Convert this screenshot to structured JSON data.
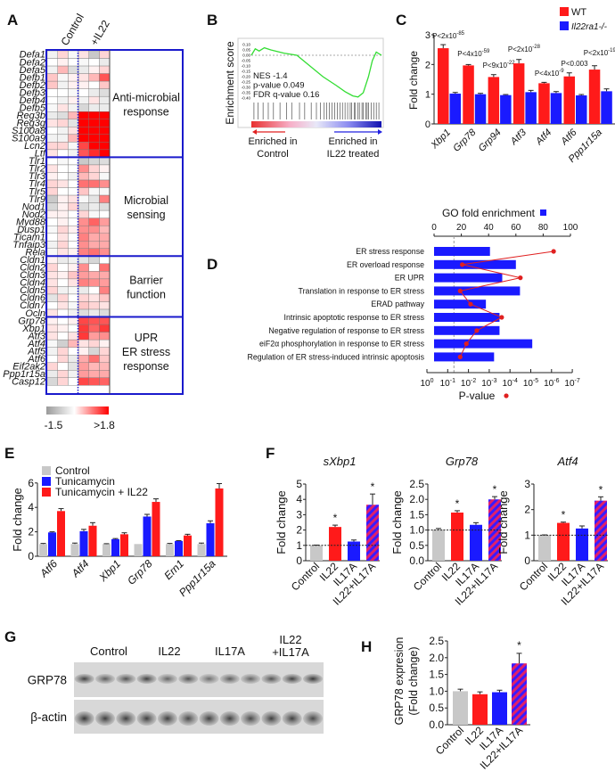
{
  "panel_labels": {
    "a": "A",
    "b": "B",
    "c": "C",
    "d": "D",
    "e": "E",
    "f": "F",
    "g": "G",
    "h": "H"
  },
  "colors": {
    "red": "#ff1a1a",
    "blue": "#1a1aff",
    "gray": "#c8c8c8",
    "frame": "#1a1acc",
    "green": "#33dd33"
  },
  "chart_data": [
    {
      "id": "A",
      "type": "heatmap",
      "columns": [
        "Control",
        "+IL22"
      ],
      "scale": {
        "min_label": "-1.5",
        "max_label": ">1.8",
        "min": -1.5,
        "max": 1.8
      },
      "sections": [
        {
          "label": [
            "Anti-microbial",
            "response"
          ],
          "rows": [
            {
              "gene": "Defa1",
              "v": [
                -0.2,
                0.3,
                -0.1,
                0.2,
                -0.8,
                0.3
              ]
            },
            {
              "gene": "Defa2",
              "v": [
                0,
                0.1,
                0,
                -0.1,
                0,
                -0.3
              ]
            },
            {
              "gene": "Defa5",
              "v": [
                -0.2,
                0.5,
                -0.5,
                -0.3,
                0.1,
                0.3
              ]
            },
            {
              "gene": "Defb1",
              "v": [
                0.4,
                -0.1,
                0.1,
                0.2,
                0.5,
                1.2
              ]
            },
            {
              "gene": "Defb2",
              "v": [
                0.4,
                -0.2,
                0.1,
                0.1,
                0,
                0.4
              ]
            },
            {
              "gene": "Defb3",
              "v": [
                0,
                0,
                -0.1,
                0,
                -0.3,
                -0.5
              ]
            },
            {
              "gene": "Defb4",
              "v": [
                0,
                -0.2,
                0.1,
                -0.2,
                0.2,
                -0.3
              ]
            },
            {
              "gene": "Defb5",
              "v": [
                -0.1,
                0.2,
                -0.2,
                -0.6,
                -0.3,
                -0.3
              ]
            },
            {
              "gene": "Reg3b",
              "v": [
                -0.3,
                -0.5,
                0.5,
                1.8,
                1.8,
                1.8
              ]
            },
            {
              "gene": "Reg3g",
              "v": [
                0.2,
                0.3,
                -0.4,
                1.8,
                1.8,
                1.8
              ]
            },
            {
              "gene": "S100a8",
              "v": [
                0,
                -0.2,
                0.2,
                1.8,
                1.8,
                1.8
              ]
            },
            {
              "gene": "S100a9",
              "v": [
                -0.2,
                -0.2,
                0.5,
                1.8,
                1.8,
                1.8
              ]
            },
            {
              "gene": "Lcn2",
              "v": [
                0.3,
                0.3,
                -0.1,
                1.3,
                1.8,
                1.8
              ]
            },
            {
              "gene": "Ltf",
              "v": [
                0.2,
                0,
                -0.2,
                1.2,
                1.5,
                1.8
              ]
            }
          ]
        },
        {
          "label": [
            "Microbial",
            "sensing"
          ],
          "rows": [
            {
              "gene": "Tlr1",
              "v": [
                0,
                -0.1,
                0,
                -0.8,
                -0.6,
                -0.5
              ]
            },
            {
              "gene": "Tlr2",
              "v": [
                0.2,
                0,
                0,
                0.8,
                0.3,
                0.1
              ]
            },
            {
              "gene": "Tlr3",
              "v": [
                0.1,
                0,
                -0.2,
                0.5,
                0.3,
                -0.1
              ]
            },
            {
              "gene": "Tlr4",
              "v": [
                0.3,
                0.2,
                0,
                1,
                1,
                0.8
              ]
            },
            {
              "gene": "Tlr5",
              "v": [
                0.3,
                0,
                0,
                0.4,
                -0.1,
                -0.1
              ]
            },
            {
              "gene": "Tlr9",
              "v": [
                -0.8,
                0.1,
                0.2,
                -0.1,
                -0.4,
                0.9
              ]
            },
            {
              "gene": "Nod1",
              "v": [
                -0.6,
                0.1,
                0.3,
                -0.5,
                -0.3,
                -0.5
              ]
            },
            {
              "gene": "Nod2",
              "v": [
                0.1,
                0.1,
                0,
                0.3,
                -0.1,
                0
              ]
            },
            {
              "gene": "Myd88",
              "v": [
                0,
                0.1,
                0,
                0.8,
                1.1,
                0.7
              ]
            },
            {
              "gene": "Dusp1",
              "v": [
                -0.1,
                0.3,
                0.1,
                0.8,
                0.8,
                0.5
              ]
            },
            {
              "gene": "Ticam1",
              "v": [
                0,
                0.2,
                0,
                0.9,
                0.6,
                0.6
              ]
            },
            {
              "gene": "Tnfaip3",
              "v": [
                -0.2,
                0.3,
                0,
                0.8,
                0.6,
                0.6
              ]
            },
            {
              "gene": "Rela",
              "v": [
                -0.1,
                0.2,
                0.1,
                0.9,
                1,
                0.8
              ]
            }
          ]
        },
        {
          "label": [
            "Barrier",
            "function"
          ],
          "rows": [
            {
              "gene": "Cldn1",
              "v": [
                0.1,
                -0.3,
                -0.2,
                -0.4,
                -0.6,
                0
              ]
            },
            {
              "gene": "Cldn2",
              "v": [
                0.3,
                0,
                0.1,
                0.8,
                0,
                1
              ]
            },
            {
              "gene": "Cldn3",
              "v": [
                0.2,
                0.1,
                0.4,
                0.7,
                0.6,
                0.6
              ]
            },
            {
              "gene": "Cldn4",
              "v": [
                0.2,
                0,
                0.2,
                0.9,
                0.8,
                0.7
              ]
            },
            {
              "gene": "Cldn5",
              "v": [
                0.3,
                -0.2,
                -0.1,
                -0.3,
                0,
                0.9
              ]
            },
            {
              "gene": "Cldn6",
              "v": [
                -0.4,
                0.3,
                0,
                0.3,
                0.2,
                0.4
              ]
            },
            {
              "gene": "Cldn7",
              "v": [
                0,
                0.2,
                -0.1,
                0.4,
                0.3,
                0.2
              ]
            },
            {
              "gene": "Ocln",
              "v": [
                0.2,
                0,
                -0.2,
                -0.5,
                -0.3,
                -0.5
              ]
            }
          ]
        },
        {
          "label": [
            "UPR",
            "ER stress",
            "response"
          ],
          "rows": [
            {
              "gene": "Grp78",
              "v": [
                0.1,
                0,
                0.1,
                1.3,
                1.2,
                1.2
              ]
            },
            {
              "gene": "Xbp1",
              "v": [
                0.2,
                0.1,
                0,
                1.4,
                1.1,
                1.4
              ]
            },
            {
              "gene": "Atf3",
              "v": [
                0.2,
                0,
                0.2,
                1.4,
                0.7,
                0.8
              ]
            },
            {
              "gene": "Atf4",
              "v": [
                -0.1,
                -0.7,
                0.5,
                0.2,
                0.3,
                0.1
              ]
            },
            {
              "gene": "Atf5",
              "v": [
                -0.2,
                0.3,
                0,
                0.1,
                -0.6,
                0.3
              ]
            },
            {
              "gene": "Atf6",
              "v": [
                0,
                0.3,
                -0.3,
                0.6,
                1,
                0.4
              ]
            },
            {
              "gene": "Eif2ak2",
              "v": [
                0.3,
                0,
                -0.4,
                0.7,
                0.5,
                0.5
              ]
            },
            {
              "gene": "Ppp1r15a",
              "v": [
                -0.3,
                0.3,
                -0.2,
                0.7,
                0.6,
                0.6
              ]
            },
            {
              "gene": "Casp12",
              "v": [
                -0.6,
                0.3,
                0,
                1.3,
                1.2,
                1.1
              ]
            }
          ]
        }
      ]
    },
    {
      "id": "B",
      "type": "line",
      "ylabel": "Enrichment score",
      "yticks": [
        "0.10",
        "0.05",
        "0.00",
        "-0.05",
        "-0.10",
        "-0.15",
        "-0.20",
        "-0.25",
        "-0.30",
        "-0.35",
        "-0.40"
      ],
      "ylim": [
        -0.4,
        0.1
      ],
      "x": [
        0,
        0.03,
        0.06,
        0.1,
        0.15,
        0.25,
        0.35,
        0.45,
        0.55,
        0.65,
        0.72,
        0.78,
        0.82,
        0.86,
        0.9,
        0.93,
        0.96,
        1.0
      ],
      "y": [
        0,
        0.06,
        0.04,
        0.07,
        0.05,
        0.02,
        0,
        -0.1,
        -0.2,
        -0.28,
        -0.34,
        -0.38,
        -0.39,
        -0.35,
        -0.2,
        -0.05,
        0.03,
        0.0
      ],
      "hits": [
        0.02,
        0.05,
        0.09,
        0.13,
        0.17,
        0.22,
        0.27,
        0.31,
        0.37,
        0.41,
        0.46,
        0.5,
        0.53,
        0.56,
        0.58,
        0.6,
        0.62,
        0.64,
        0.66,
        0.68,
        0.7,
        0.72,
        0.74,
        0.76,
        0.77,
        0.79,
        0.8,
        0.82,
        0.83,
        0.85,
        0.86,
        0.88,
        0.89,
        0.9,
        0.92,
        0.94,
        0.96,
        0.98
      ],
      "stats": [
        "NES -1.4",
        "p-value 0.049",
        "FDR q-value 0.16"
      ],
      "left_label": [
        "Enriched in",
        "Control"
      ],
      "right_label": [
        "Enriched in",
        "IL22 treated"
      ]
    },
    {
      "id": "C",
      "type": "bar",
      "ylabel": "Fold change",
      "ylim": [
        0,
        3
      ],
      "yticks": [
        "0",
        "1",
        "2",
        "3"
      ],
      "categories": [
        "Xbp1",
        "Grp78",
        "Grp94",
        "Atf3",
        "Atf4",
        "Atf6",
        "Ppp1r15a"
      ],
      "series": [
        {
          "name": "WT",
          "values": [
            2.55,
            1.97,
            1.58,
            2.04,
            1.37,
            1.6,
            1.83
          ],
          "errors": [
            0.12,
            0.03,
            0.08,
            0.13,
            0.03,
            0.12,
            0.13
          ]
        },
        {
          "name": "Il22ra1-/-",
          "values": [
            1.02,
            1.0,
            0.97,
            1.07,
            1.04,
            0.96,
            1.1
          ],
          "errors": [
            0.04,
            0.03,
            0.02,
            0.06,
            0.05,
            0.03,
            0.08
          ]
        }
      ],
      "pvalues": [
        {
          "base": "P<2x10",
          "exp": "-85"
        },
        {
          "base": "P<4x10",
          "exp": "-59"
        },
        {
          "base": "P<9x10",
          "exp": "-22"
        },
        {
          "base": "P<2x10",
          "exp": "-28"
        },
        {
          "base": "P<4x10",
          "exp": "-9"
        },
        {
          "base": "P<0.003",
          "exp": ""
        },
        {
          "base": "P<2x10",
          "exp": "-19"
        }
      ]
    },
    {
      "id": "D",
      "type": "bar",
      "top_axis_label": "GO fold enrichment",
      "top_ticks": [
        "0",
        "20",
        "40",
        "60",
        "80",
        "100"
      ],
      "xlim": [
        0,
        100
      ],
      "bottom_axis_label": "P-value",
      "bottom_ticks_exp": [
        "0",
        "-1",
        "-2",
        "-3",
        "-4",
        "-5",
        "-6",
        "-7"
      ],
      "bottom_tick_base": "10",
      "threshold_exp": -1.3,
      "categories": [
        "ER stress response",
        "ER overload response",
        "ER UPR",
        "Translation in response to ER stress",
        "ERAD pathway",
        "Intrinsic apoptotic response to ER stress",
        "Negative regulation of response to ER stress",
        "eiF2α phosphorylation in response to ER stress",
        "Regulation of ER stress-induced intrinsic apoptosis"
      ],
      "fold_enrichment": [
        41,
        60,
        50,
        63,
        38,
        48,
        48,
        72,
        44
      ],
      "pvalue_log10": [
        -6.1,
        -1.7,
        -4.5,
        -1.6,
        -2.1,
        -3.6,
        -2.4,
        -1.9,
        -1.6
      ]
    },
    {
      "id": "E",
      "type": "bar",
      "ylabel": "Fold change",
      "ylim": [
        0,
        6
      ],
      "yticks": [
        "0",
        "2",
        "4",
        "6"
      ],
      "categories": [
        "Atf6",
        "Atf4",
        "Xbp1",
        "Grp78",
        "Ern1",
        "Ppp1r15a"
      ],
      "series": [
        {
          "name": "Control",
          "values": [
            1,
            1,
            1,
            1,
            1,
            1
          ],
          "errors": [
            0.05,
            0.08,
            0.03,
            0,
            0.05,
            0.08
          ]
        },
        {
          "name": "Tunicamycin",
          "values": [
            1.95,
            2.05,
            1.4,
            3.25,
            1.25,
            2.7
          ],
          "errors": [
            0.05,
            0.15,
            0.05,
            0.18,
            0.03,
            0.2
          ]
        },
        {
          "name": "Tunicamycin + IL22",
          "values": [
            3.7,
            2.5,
            1.8,
            4.45,
            1.7,
            5.55
          ],
          "errors": [
            0.2,
            0.25,
            0.12,
            0.25,
            0.1,
            0.4
          ]
        }
      ]
    },
    {
      "id": "F",
      "type": "bar",
      "ylabel": "Fold change",
      "categories": [
        "Control",
        "IL22",
        "IL17A",
        "IL22+IL17A"
      ],
      "star": "*",
      "subplots": [
        {
          "title": "sXbp1",
          "ylim": [
            0,
            5
          ],
          "yticks": [
            "0",
            "1",
            "2",
            "3",
            "4",
            "5"
          ],
          "values": [
            1,
            2.2,
            1.25,
            3.65
          ],
          "errors": [
            0.02,
            0.12,
            0.1,
            0.7
          ],
          "significant": [
            false,
            true,
            false,
            true
          ]
        },
        {
          "title": "Grp78",
          "ylim": [
            0,
            2.5
          ],
          "yticks": [
            "0.0",
            "0.5",
            "1.0",
            "1.5",
            "2.0",
            "2.5"
          ],
          "values": [
            1.02,
            1.57,
            1.17,
            2.0
          ],
          "errors": [
            0.03,
            0.06,
            0.07,
            0.09
          ],
          "significant": [
            false,
            true,
            false,
            true
          ]
        },
        {
          "title": "Atf4",
          "ylim": [
            0,
            3
          ],
          "yticks": [
            "0",
            "1",
            "2",
            "3"
          ],
          "values": [
            1.0,
            1.48,
            1.26,
            2.35
          ],
          "errors": [
            0.01,
            0.03,
            0.1,
            0.15
          ],
          "significant": [
            false,
            true,
            false,
            true
          ]
        }
      ]
    },
    {
      "id": "H",
      "type": "bar",
      "ylabel": [
        "GRP78 expresion",
        "(Fold change)"
      ],
      "ylim": [
        0,
        2.5
      ],
      "yticks": [
        "0.0",
        "0.5",
        "1.0",
        "1.5",
        "2.0",
        "2.5"
      ],
      "categories": [
        "Control",
        "IL22",
        "IL17A",
        "IL22+IL17A"
      ],
      "values": [
        1.0,
        0.91,
        0.97,
        1.83
      ],
      "errors": [
        0.06,
        0.07,
        0.06,
        0.3
      ],
      "significant": [
        false,
        false,
        false,
        true
      ],
      "star": "*"
    }
  ],
  "western_blot": {
    "groups": [
      [
        "Control"
      ],
      [
        "IL22"
      ],
      [
        "IL17A"
      ],
      [
        "IL22",
        "+IL17A"
      ]
    ],
    "rows": [
      "GRP78",
      "β-actin"
    ],
    "grp78_intensity": [
      0.85,
      0.7,
      0.75,
      0.85,
      0.65,
      0.75,
      0.6,
      0.7,
      0.65,
      0.75,
      0.85,
      0.9
    ],
    "actin_intensity": [
      0.9,
      0.85,
      0.85,
      0.85,
      0.85,
      0.8,
      0.85,
      0.85,
      0.8,
      0.85,
      0.85,
      0.8
    ]
  }
}
